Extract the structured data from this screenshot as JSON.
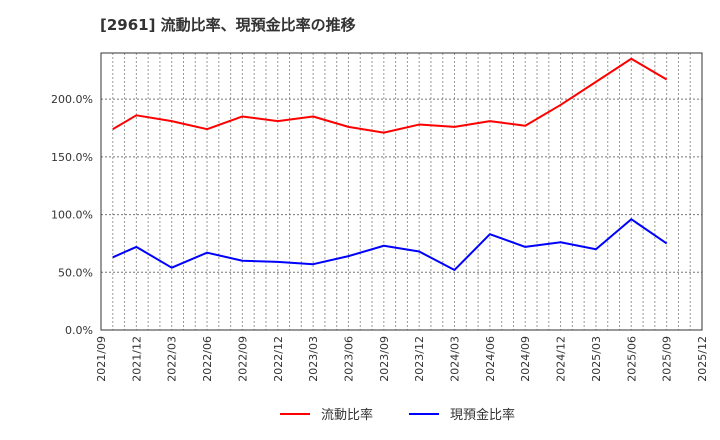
{
  "chart_data": {
    "type": "line",
    "title": "[2961]  流動比率、現預金比率の推移",
    "xlabel": "",
    "ylabel": "",
    "ylim": [
      0,
      240
    ],
    "y_ticks": [
      0,
      50,
      100,
      150,
      200
    ],
    "y_tick_labels": [
      "0.0%",
      "50.0%",
      "100.0%",
      "150.0%",
      "200.0%"
    ],
    "x_tick_labels": [
      "2021/09",
      "2021/12",
      "2022/03",
      "2022/06",
      "2022/09",
      "2022/12",
      "2023/03",
      "2023/06",
      "2023/09",
      "2023/12",
      "2024/03",
      "2024/06",
      "2024/09",
      "2024/12",
      "2025/03",
      "2025/06",
      "2025/09",
      "2025/12"
    ],
    "x": [
      "2021/10",
      "2021/12",
      "2022/03",
      "2022/06",
      "2022/09",
      "2022/12",
      "2023/03",
      "2023/06",
      "2023/09",
      "2023/12",
      "2024/03",
      "2024/06",
      "2024/09",
      "2024/12",
      "2025/03",
      "2025/06",
      "2025/09"
    ],
    "grid": true,
    "legend_position": "bottom",
    "series": [
      {
        "name": "流動比率",
        "color": "#ff0000",
        "values": [
          174,
          186,
          181,
          174,
          185,
          181,
          185,
          176,
          171,
          178,
          176,
          181,
          177,
          195,
          215,
          235,
          217
        ]
      },
      {
        "name": "現預金比率",
        "color": "#0000ff",
        "values": [
          63,
          72,
          54,
          67,
          60,
          59,
          57,
          64,
          73,
          68,
          52,
          83,
          72,
          76,
          70,
          96,
          75
        ]
      }
    ]
  }
}
